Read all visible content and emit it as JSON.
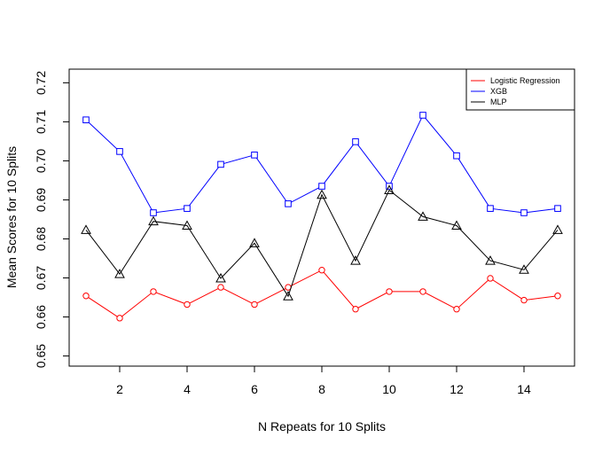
{
  "chart_data": {
    "type": "line",
    "title": "",
    "xlabel": "N Repeats for 10 Splits",
    "ylabel": "Mean Scores for 10 Splits",
    "x": [
      1,
      2,
      3,
      4,
      5,
      6,
      7,
      8,
      9,
      10,
      11,
      12,
      13,
      14,
      15
    ],
    "xlim": [
      0.5,
      15.5
    ],
    "ylim": [
      0.6474,
      0.7235
    ],
    "x_ticks": [
      2,
      4,
      6,
      8,
      10,
      12,
      14
    ],
    "y_ticks": [
      0.65,
      0.66,
      0.67,
      0.68,
      0.69,
      0.7,
      0.71,
      0.72
    ],
    "y_tick_labels": [
      "0.65",
      "0.66",
      "0.67",
      "0.68",
      "0.69",
      "0.70",
      "0.71",
      "0.72"
    ],
    "grid": false,
    "legend_position": "top-right",
    "series": [
      {
        "name": "Logistic Regression",
        "color": "#ff0000",
        "marker": "circle",
        "values": [
          0.6654,
          0.6597,
          0.6665,
          0.6632,
          0.6676,
          0.6632,
          0.6676,
          0.672,
          0.662,
          0.6665,
          0.6665,
          0.662,
          0.6699,
          0.6643,
          0.6654
        ]
      },
      {
        "name": "XGB",
        "color": "#0000ff",
        "marker": "square",
        "values": [
          0.7105,
          0.7024,
          0.6867,
          0.6878,
          0.6991,
          0.7015,
          0.689,
          0.6935,
          0.7049,
          0.6935,
          0.7117,
          0.7013,
          0.6878,
          0.6867,
          0.6878
        ]
      },
      {
        "name": "MLP",
        "color": "#000000",
        "marker": "triangle",
        "values": [
          0.6823,
          0.671,
          0.6845,
          0.6834,
          0.6699,
          0.6789,
          0.6653,
          0.6913,
          0.6744,
          0.6925,
          0.6857,
          0.6834,
          0.6744,
          0.6721,
          0.6823
        ]
      }
    ]
  }
}
